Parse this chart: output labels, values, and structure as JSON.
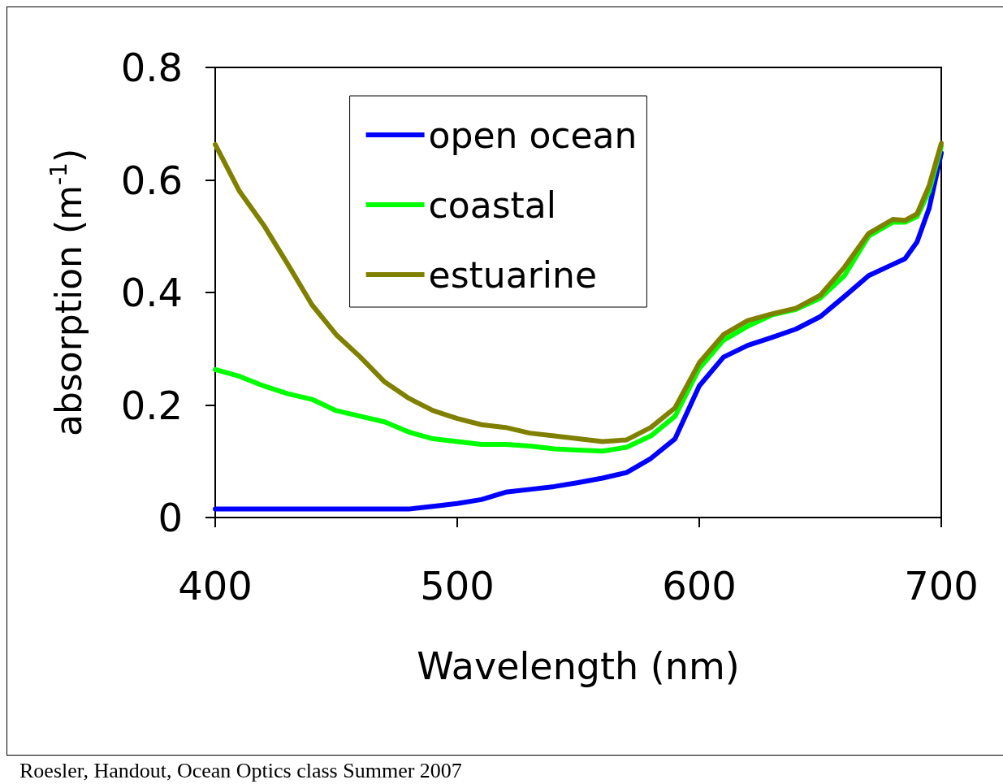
{
  "chart_data": {
    "type": "line",
    "xlabel": "Wavelength (nm)",
    "ylabel": "absorption (m$^{-1}$)",
    "xlim": [
      400,
      700
    ],
    "xticks": [
      400,
      500,
      600,
      700
    ],
    "ylim": [
      0,
      0.8
    ],
    "yticks": [
      0,
      0.2,
      0.4,
      0.6,
      0.8
    ],
    "grid": false,
    "legend": "top",
    "marker": "none",
    "line_style": "solid",
    "annotations": [
      "Roesler, Handout, Ocean Optics class Summer 2007"
    ],
    "x": [
      400,
      410,
      420,
      430,
      440,
      450,
      460,
      470,
      480,
      490,
      500,
      510,
      520,
      530,
      540,
      550,
      560,
      570,
      580,
      590,
      600,
      610,
      620,
      630,
      640,
      650,
      660,
      670,
      680,
      685,
      690,
      695,
      700
    ],
    "series": [
      {
        "name": "open ocean",
        "color": "#0000ff",
        "values": [
          0.015,
          0.015,
          0.015,
          0.015,
          0.015,
          0.015,
          0.015,
          0.015,
          0.015,
          0.02,
          0.025,
          0.032,
          0.045,
          0.05,
          0.055,
          0.062,
          0.07,
          0.08,
          0.105,
          0.14,
          0.234,
          0.285,
          0.306,
          0.32,
          0.335,
          0.357,
          0.393,
          0.43,
          0.45,
          0.46,
          0.49,
          0.55,
          0.648
        ]
      },
      {
        "name": "coastal",
        "color": "#00ff00",
        "values": [
          0.263,
          0.251,
          0.234,
          0.22,
          0.21,
          0.19,
          0.18,
          0.17,
          0.152,
          0.14,
          0.135,
          0.13,
          0.13,
          0.127,
          0.122,
          0.12,
          0.118,
          0.125,
          0.145,
          0.18,
          0.265,
          0.315,
          0.34,
          0.36,
          0.37,
          0.39,
          0.43,
          0.5,
          0.525,
          0.525,
          0.535,
          0.58,
          0.66
        ]
      },
      {
        "name": "estuarine",
        "color": "#808000",
        "values": [
          0.663,
          0.58,
          0.52,
          0.45,
          0.378,
          0.325,
          0.285,
          0.241,
          0.212,
          0.19,
          0.176,
          0.165,
          0.16,
          0.15,
          0.145,
          0.14,
          0.135,
          0.138,
          0.16,
          0.195,
          0.275,
          0.325,
          0.35,
          0.362,
          0.372,
          0.395,
          0.445,
          0.505,
          0.53,
          0.528,
          0.54,
          0.59,
          0.665
        ]
      }
    ]
  }
}
